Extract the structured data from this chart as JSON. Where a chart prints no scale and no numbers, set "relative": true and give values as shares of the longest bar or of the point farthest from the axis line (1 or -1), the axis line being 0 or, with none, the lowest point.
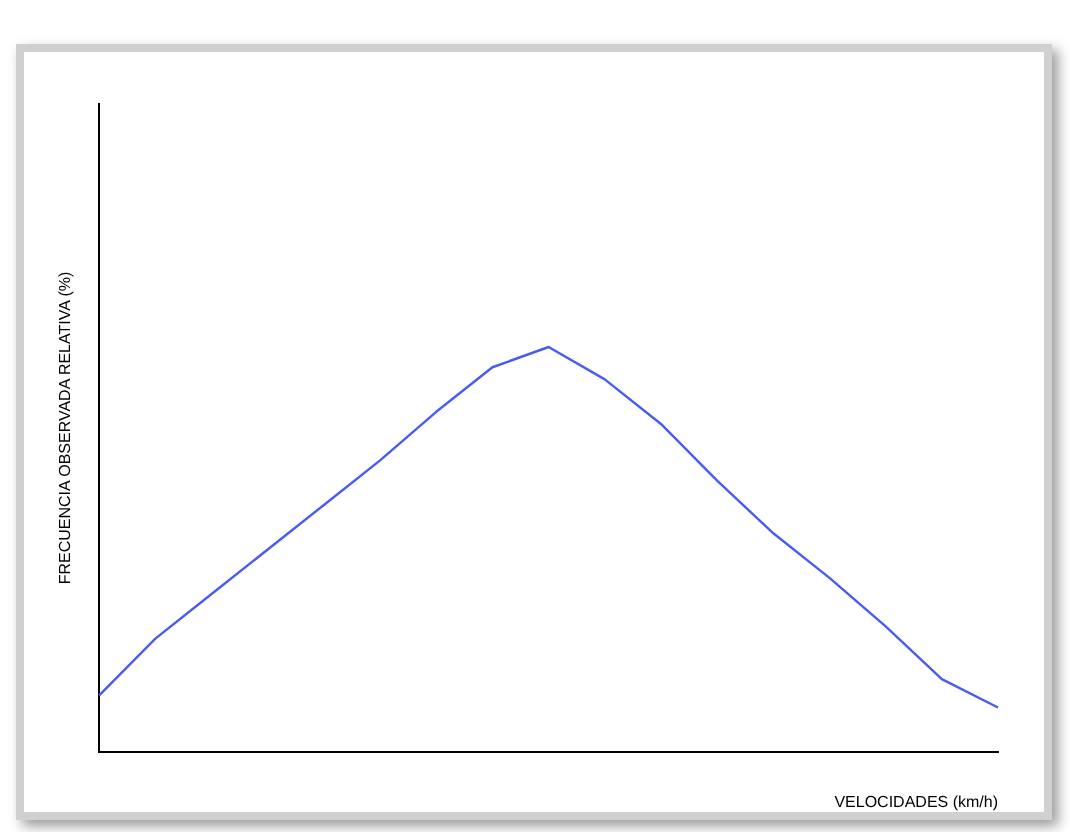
{
  "chart_data": {
    "type": "line",
    "relative": true,
    "xlabel": "VELOCIDADES (km/h)",
    "ylabel": "FRECUENCIA OBSERVADA RELATIVA (%)",
    "grid": false,
    "legend": false,
    "marker": "none",
    "categories": [
      null,
      null,
      null,
      null,
      null,
      null,
      null,
      null,
      null,
      null,
      null,
      null,
      null,
      null,
      null,
      null,
      null
    ],
    "series": [
      {
        "color": "#4a5cf0",
        "values": [
          0.14,
          0.28,
          0.39,
          0.5,
          0.61,
          0.72,
          0.84,
          0.95,
          1,
          0.92,
          0.81,
          0.67,
          0.54,
          0.43,
          0.31,
          0.18,
          0.11
        ]
      }
    ]
  }
}
